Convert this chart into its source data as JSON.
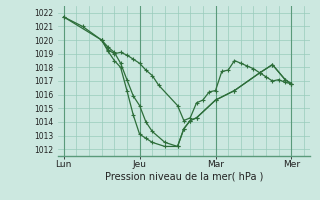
{
  "background_color": "#cce8e0",
  "grid_color": "#99ccbb",
  "line_color": "#2d6e3a",
  "title": "Pression niveau de la mer( hPa )",
  "ylim": [
    1011.5,
    1022.5
  ],
  "yticks": [
    1012,
    1013,
    1014,
    1015,
    1016,
    1017,
    1018,
    1019,
    1020,
    1021,
    1022
  ],
  "xlim": [
    -0.08,
    3.25
  ],
  "xlabel_ticks": [
    0,
    1,
    2,
    3
  ],
  "xlabel_labels": [
    "Lun",
    "Jeu",
    "Mar",
    "Mer"
  ],
  "series1": {
    "x": [
      0.0,
      0.25,
      0.5,
      0.583,
      0.667,
      0.75,
      0.833,
      0.917,
      1.0,
      1.083,
      1.167,
      1.25,
      1.5,
      1.583,
      1.667,
      1.75,
      1.833,
      1.917,
      2.0,
      2.083,
      2.167,
      2.25,
      2.333,
      2.417,
      2.5,
      2.583,
      2.667,
      2.75,
      2.833,
      2.917,
      3.0
    ],
    "y": [
      1021.7,
      1021.0,
      1020.0,
      1019.3,
      1019.0,
      1019.1,
      1018.9,
      1018.6,
      1018.3,
      1017.8,
      1017.4,
      1016.7,
      1015.2,
      1014.1,
      1014.3,
      1015.4,
      1015.6,
      1016.2,
      1016.3,
      1017.7,
      1017.8,
      1018.5,
      1018.3,
      1018.1,
      1017.9,
      1017.6,
      1017.3,
      1017.0,
      1017.1,
      1016.9,
      1016.8
    ]
  },
  "series2": {
    "x": [
      0.0,
      0.5,
      0.583,
      0.667,
      0.75,
      0.833,
      0.917,
      1.0,
      1.083,
      1.167,
      1.333,
      1.5,
      1.583,
      1.667,
      1.75,
      2.0,
      2.25,
      2.583,
      2.75,
      2.917,
      3.0
    ],
    "y": [
      1021.7,
      1020.0,
      1019.5,
      1019.1,
      1018.3,
      1017.1,
      1015.9,
      1015.2,
      1014.0,
      1013.3,
      1012.5,
      1012.2,
      1013.5,
      1014.1,
      1014.3,
      1015.6,
      1016.3,
      1017.6,
      1018.2,
      1017.1,
      1016.8
    ]
  },
  "series3": {
    "x": [
      0.5,
      0.583,
      0.667,
      0.75,
      0.833,
      0.917,
      1.0,
      1.083,
      1.167,
      1.333,
      1.5,
      1.583,
      1.667,
      1.75,
      2.0,
      2.25,
      2.583,
      2.75,
      2.917,
      3.0
    ],
    "y": [
      1020.0,
      1019.2,
      1018.5,
      1018.0,
      1016.3,
      1014.5,
      1013.1,
      1012.8,
      1012.5,
      1012.2,
      1012.2,
      1013.5,
      1014.1,
      1014.3,
      1015.6,
      1016.3,
      1017.6,
      1018.2,
      1017.1,
      1016.8
    ]
  },
  "vline_color": "#5a9a7a",
  "vline_lw": 0.8,
  "grid_lw": 0.5,
  "line_lw": 0.9,
  "marker_size": 2.5,
  "ytick_fontsize": 5.5,
  "xtick_fontsize": 6.5,
  "title_fontsize": 7.0
}
